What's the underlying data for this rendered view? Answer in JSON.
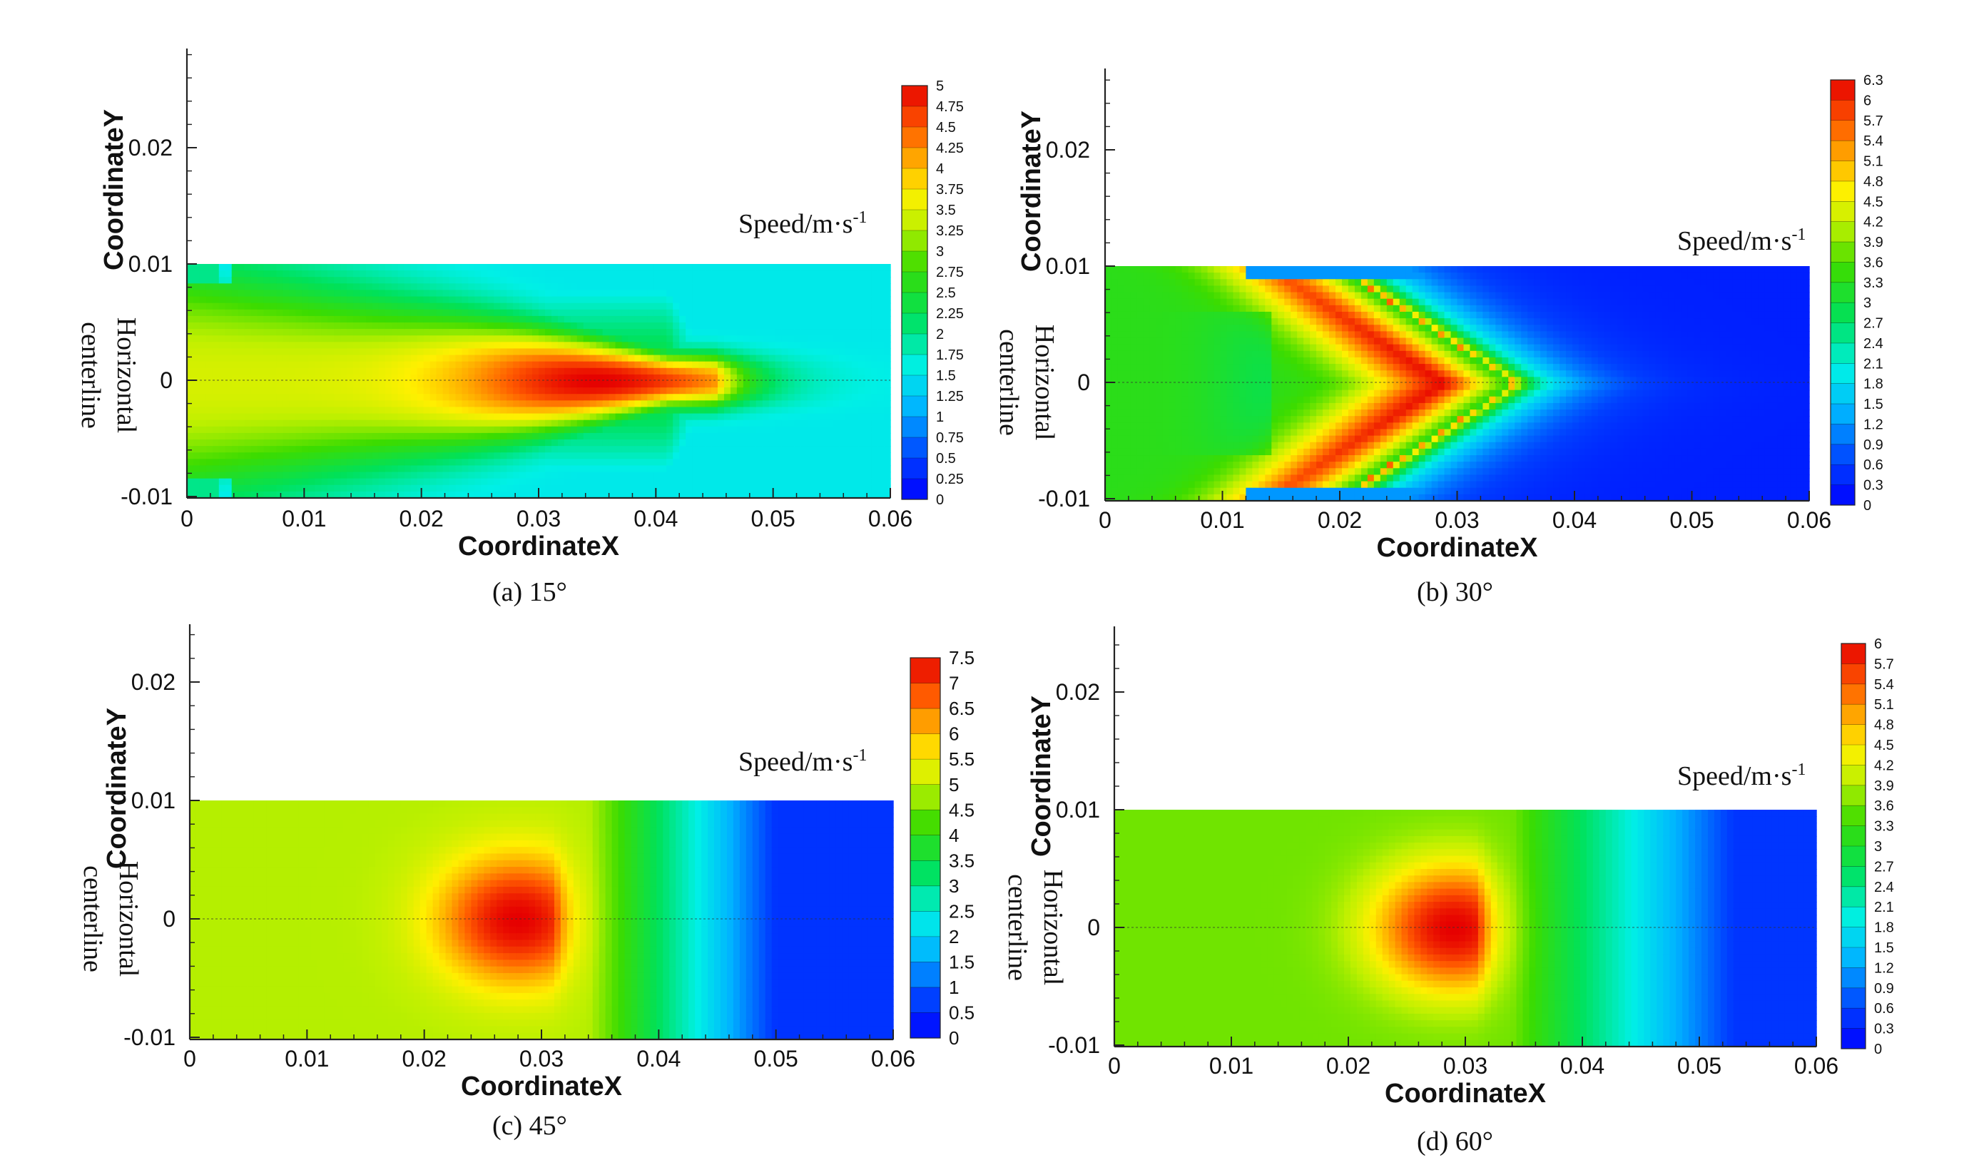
{
  "figure": {
    "captions": [
      "(a) 15°",
      "(b) 30°",
      "(c)  45°",
      "(d) 60°"
    ]
  },
  "chart_data": [
    {
      "type": "heatmap",
      "caption": "(a) 15°",
      "xlabel": "CoordinateX",
      "ylabel": "CoordinateY",
      "annotation": [
        "Horizontal",
        "centerline"
      ],
      "colorbar_title": "Speed/m·s",
      "colorbar_title_sup": "-1",
      "xlim": [
        0,
        0.06
      ],
      "ylim": [
        -0.01,
        0.028
      ],
      "domain_y": [
        -0.01,
        0.01
      ],
      "xticks": [
        "0",
        "0.01",
        "0.02",
        "0.03",
        "0.04",
        "0.05",
        "0.06"
      ],
      "yticks": [
        "-0.01",
        "0",
        "0.01",
        "0.02"
      ],
      "colorbar": {
        "min": 0,
        "max": 5,
        "labels": [
          "5",
          "4.75",
          "4.5",
          "4.25",
          "4",
          "3.75",
          "3.5",
          "3.25",
          "3",
          "2.75",
          "2.5",
          "2.25",
          "2",
          "1.75",
          "1.5",
          "1.25",
          "1",
          "0.75",
          "0.5",
          "0.25",
          "0"
        ]
      },
      "field": {
        "v0": 2.8,
        "peak": 5.0,
        "x_peak": 0.035,
        "tip": 0.041,
        "jet_half0": 0.0082,
        "jet_half_end": 0.0,
        "dip_x": null,
        "shock_x": null,
        "tail_x": 0.047,
        "far": 0.2,
        "field_mode": "jet"
      }
    },
    {
      "type": "heatmap",
      "caption": "(b) 30°",
      "xlabel": "CoordinateX",
      "ylabel": "CoordinateY",
      "annotation": [
        "Horizontal",
        "centerline"
      ],
      "colorbar_title": "Speed/m·s",
      "colorbar_title_sup": "-1",
      "xlim": [
        0,
        0.06
      ],
      "ylim": [
        -0.01,
        0.027
      ],
      "domain_y": [
        -0.01,
        0.01
      ],
      "xticks": [
        "0",
        "0.01",
        "0.02",
        "0.03",
        "0.04",
        "0.05",
        "0.06"
      ],
      "yticks": [
        "-0.01",
        "0",
        "0.01",
        "0.02"
      ],
      "colorbar": {
        "min": 0,
        "max": 6.3,
        "labels": [
          "6.3",
          "6",
          "5.7",
          "5.4",
          "5.1",
          "4.8",
          "4.5",
          "4.2",
          "3.9",
          "3.6",
          "3.3",
          "3",
          "2.7",
          "2.4",
          "2.1",
          "1.8",
          "1.5",
          "1.2",
          "0.9",
          "0.6",
          "0.3",
          "0"
        ]
      },
      "field": {
        "v0": 3.9,
        "peak": 6.3,
        "x_peak": 0.03,
        "tip": 0.035,
        "jet_half0": 0.011,
        "jet_half_end": 0.0,
        "dip_x": 0.014,
        "shock_x": null,
        "tail_x": 0.042,
        "far": 0.3,
        "field_mode": "cone"
      }
    },
    {
      "type": "heatmap",
      "caption": "(c)  45°",
      "xlabel": "CoordinateX",
      "ylabel": "CoordinateY",
      "annotation": [
        "Horizontal",
        "centerline"
      ],
      "colorbar_title": "Speed/m·s",
      "colorbar_title_sup": "-1",
      "xlim": [
        0,
        0.06
      ],
      "ylim": [
        -0.01,
        0.025
      ],
      "domain_y": [
        -0.01,
        0.01
      ],
      "xticks": [
        "0",
        "0.01",
        "0.02",
        "0.03",
        "0.04",
        "0.05",
        "0.06"
      ],
      "yticks": [
        "-0.01",
        "0",
        "0.01",
        "0.02"
      ],
      "colorbar": {
        "min": 0,
        "max": 7.5,
        "labels": [
          "7.5",
          "7",
          "6.5",
          "6",
          "5.5",
          "5",
          "4.5",
          "4",
          "3.5",
          "3",
          "2.5",
          "2",
          "1.5",
          "1",
          "0.5",
          "0"
        ]
      },
      "field": {
        "v0": 4.9,
        "peak": 7.5,
        "x_peak": 0.028,
        "tip": 0.031,
        "jet_half0": 0.0,
        "jet_half_end": 0.0,
        "dip_x": null,
        "shock_x": 0.032,
        "tail_x": 0.05,
        "far": 0.6,
        "field_mode": "blob"
      }
    },
    {
      "type": "heatmap",
      "caption": "(d) 60°",
      "xlabel": "CoordinateX",
      "ylabel": "CoordinateY",
      "annotation": [
        "Horizontal",
        "centerline"
      ],
      "colorbar_title": "Speed/m·s",
      "colorbar_title_sup": "-1",
      "xlim": [
        0,
        0.06
      ],
      "ylim": [
        -0.01,
        0.026
      ],
      "domain_y": [
        -0.01,
        0.01
      ],
      "xticks": [
        "0",
        "0.01",
        "0.02",
        "0.03",
        "0.04",
        "0.05",
        "0.06"
      ],
      "yticks": [
        "-0.01",
        "0",
        "0.01",
        "0.02"
      ],
      "colorbar": {
        "min": 0,
        "max": 6,
        "labels": [
          "6",
          "5.7",
          "5.4",
          "5.1",
          "4.8",
          "4.5",
          "4.2",
          "3.9",
          "3.6",
          "3.3",
          "3",
          "2.7",
          "2.4",
          "2.1",
          "1.8",
          "1.5",
          "1.2",
          "0.9",
          "0.6",
          "0.3",
          "0"
        ]
      },
      "field": {
        "v0": 3.6,
        "peak": 6.0,
        "x_peak": 0.029,
        "tip": 0.031,
        "jet_half0": 0.0,
        "jet_half_end": 0.0,
        "dip_x": null,
        "shock_x": null,
        "tail_x": 0.053,
        "far": 0.5,
        "field_mode": "blob"
      }
    }
  ]
}
